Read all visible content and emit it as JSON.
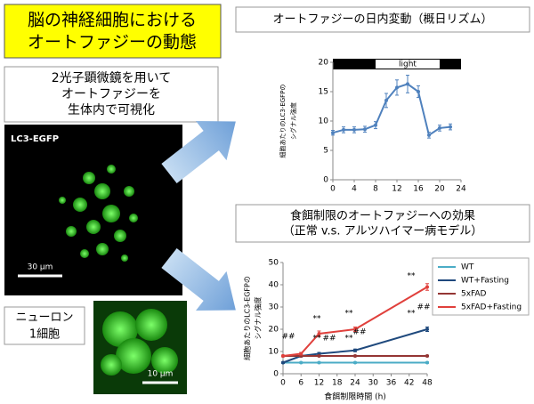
{
  "slide": {
    "title": [
      "脳の神経細胞における",
      "オートファジーの動態"
    ],
    "method": [
      "2光子顕微鏡を用いて",
      "オートファジーを",
      "生体内で可視化"
    ],
    "image_label": "LC3-EGFP",
    "scale_bar_large": "30 μm",
    "neuron_label": [
      "ニューロン",
      "1細胞"
    ],
    "scale_bar_small": "10 μm"
  },
  "chart_data": [
    {
      "type": "line",
      "title": [
        "オートファジーの日内変動（概日リズム）"
      ],
      "y_label": [
        "細胞あたりのLC3-EGFPの",
        "シグナル強度"
      ],
      "x": [
        0,
        2,
        4,
        6,
        8,
        10,
        12,
        14,
        16,
        18,
        20,
        22
      ],
      "series": [
        {
          "color": "#4f81bd",
          "values": [
            8.0,
            8.5,
            8.5,
            8.6,
            9.3,
            13.5,
            15.7,
            16.3,
            15.0,
            7.6,
            8.8,
            9.0
          ],
          "errors": [
            0.4,
            0.5,
            0.5,
            0.5,
            0.6,
            1.2,
            1.3,
            1.5,
            1.0,
            0.5,
            0.5,
            0.5
          ]
        }
      ],
      "xlim": [
        0,
        24
      ],
      "xticks": [
        0,
        4,
        8,
        12,
        16,
        20,
        24
      ],
      "ylim": [
        0,
        20
      ],
      "yticks": [
        0,
        5,
        10,
        15,
        20
      ],
      "light_label": "light",
      "light_period": [
        8,
        20
      ]
    },
    {
      "type": "line",
      "title": [
        "食餌制限のオートファジーへの効果",
        "（正常 v.s. アルツハイマー病モデル）"
      ],
      "y_label": [
        "細胞あたりのLC3-EGFPの",
        "シグナル強度"
      ],
      "x_label": "食餌制限時間 (h)",
      "x": [
        0,
        6,
        12,
        24,
        48
      ],
      "series": [
        {
          "name": "WT",
          "color": "#4bacc6",
          "values": [
            5,
            5,
            5,
            5,
            5
          ],
          "errors": [
            0.3,
            0.3,
            0.3,
            0.3,
            0.3
          ]
        },
        {
          "name": "WT+Fasting",
          "color": "#1f497d",
          "values": [
            5,
            8,
            9,
            10.5,
            20
          ],
          "errors": [
            0.3,
            0.5,
            0.6,
            0.6,
            1.0
          ]
        },
        {
          "name": "5xFAD",
          "color": "#943634",
          "values": [
            8,
            8,
            8,
            8,
            8
          ],
          "errors": [
            0.3,
            0.3,
            0.3,
            0.3,
            0.3
          ]
        },
        {
          "name": "5xFAD+Fasting",
          "color": "#e0403c",
          "values": [
            8,
            9,
            18,
            20,
            39
          ],
          "errors": [
            0.4,
            0.6,
            1.2,
            1.0,
            1.5
          ]
        }
      ],
      "xlim": [
        0,
        48
      ],
      "xticks": [
        0,
        6,
        12,
        18,
        24,
        30,
        36,
        42,
        48
      ],
      "ylim": [
        0,
        50
      ],
      "yticks": [
        0,
        10,
        20,
        30,
        40,
        50
      ],
      "annotations": [
        "##",
        "**",
        "**",
        "##",
        "**",
        "**",
        "##",
        "**",
        "**",
        "##"
      ]
    }
  ]
}
